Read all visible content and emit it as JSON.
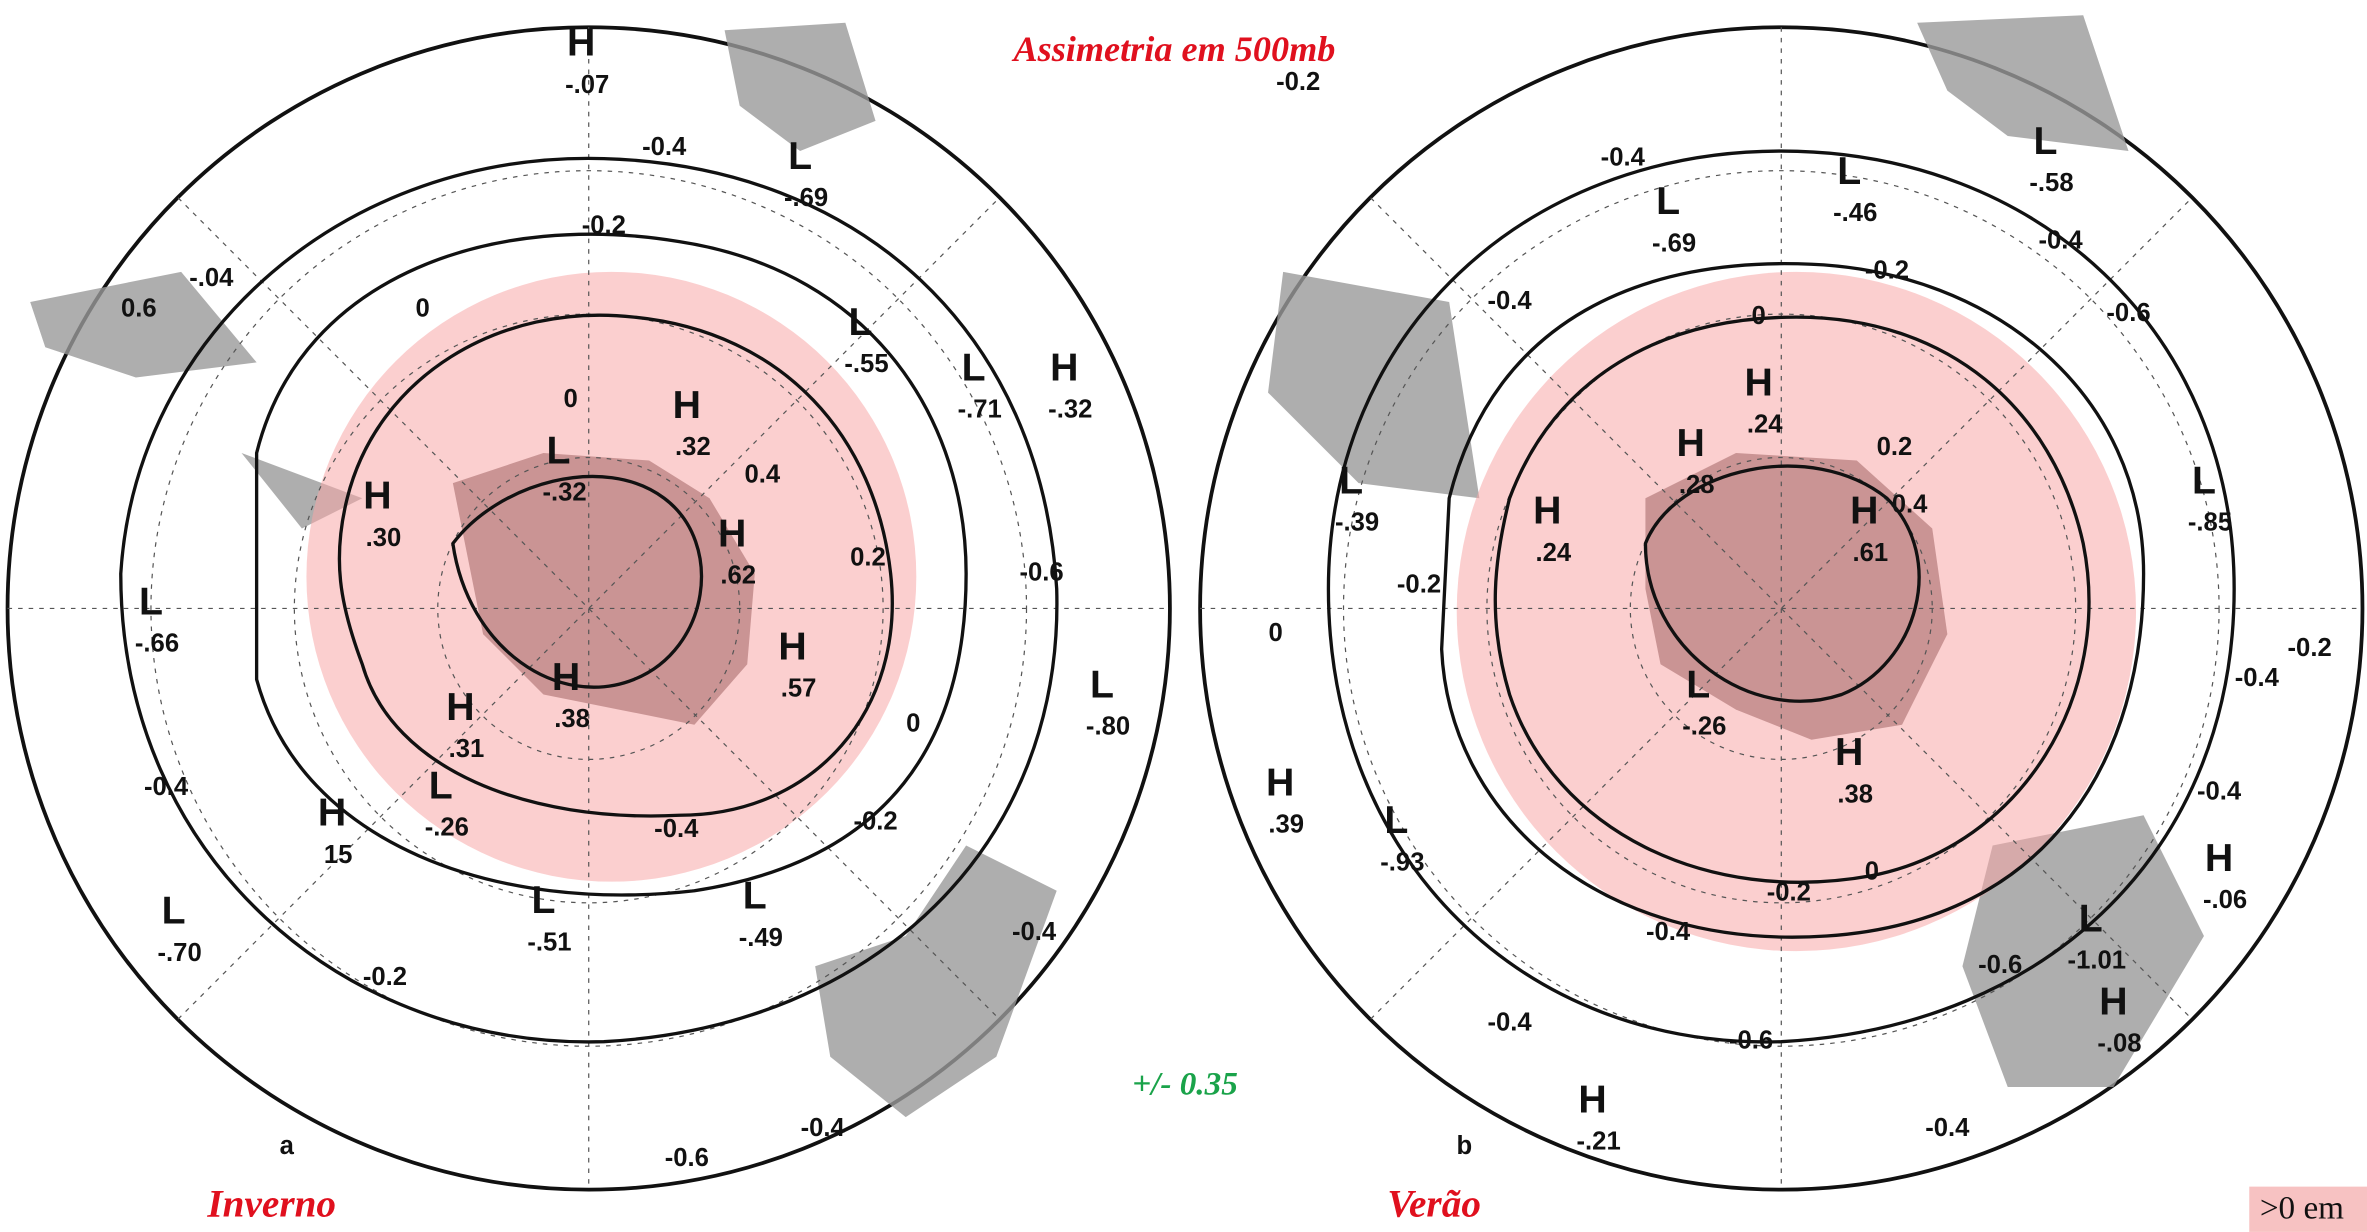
{
  "title": "Assimetria em 500mb",
  "threshold": "+/- 0.35",
  "legend": ">0 em",
  "panels": [
    {
      "letter": "a",
      "season": "Inverno",
      "centers": [
        {
          "type": "H",
          "value": "-.07"
        },
        {
          "type": "L",
          "value": "-.69"
        },
        {
          "type": "L",
          "value": "-.55"
        },
        {
          "type": "L",
          "value": "-.71"
        },
        {
          "type": "H",
          "value": "-.32"
        },
        {
          "type": "H",
          "value": ".32"
        },
        {
          "type": "L",
          "value": "-.32"
        },
        {
          "type": "H",
          "value": ".30"
        },
        {
          "type": "H",
          "value": ".62"
        },
        {
          "type": "L",
          "value": "-.66"
        },
        {
          "type": "H",
          "value": ".38"
        },
        {
          "type": "H",
          "value": ".57"
        },
        {
          "type": "H",
          "value": ".31"
        },
        {
          "type": "L",
          "value": "-.26"
        },
        {
          "type": "L",
          "value": "-.80"
        },
        {
          "type": "H",
          "value": "15"
        },
        {
          "type": "L",
          "value": "-.51"
        },
        {
          "type": "L",
          "value": "-.49"
        },
        {
          "type": "L",
          "value": "-.70"
        }
      ],
      "contours": [
        "-.04",
        "0.6",
        "-0.4",
        "-0.2",
        "0",
        "0",
        "0.4",
        "0.2",
        "-0.6",
        "0",
        "-0.2",
        "-0.4",
        "-0.4",
        "-0.2",
        "-0.4",
        "-0.4",
        "-0.6"
      ]
    },
    {
      "letter": "b",
      "season": "Verão",
      "centers": [
        {
          "type": "L",
          "value": "-.58"
        },
        {
          "type": "L",
          "value": "-.46"
        },
        {
          "type": "L",
          "value": "-.69"
        },
        {
          "type": "H",
          "value": ".24"
        },
        {
          "type": "H",
          "value": ".28"
        },
        {
          "type": "H",
          "value": ".24"
        },
        {
          "type": "H",
          "value": ".61"
        },
        {
          "type": "L",
          "value": "-.39"
        },
        {
          "type": "L",
          "value": "-.85"
        },
        {
          "type": "L",
          "value": "-.26"
        },
        {
          "type": "H",
          "value": ".38"
        },
        {
          "type": "H",
          "value": ".39"
        },
        {
          "type": "L",
          "value": "-.93"
        },
        {
          "type": "H",
          "value": "-.06"
        },
        {
          "type": "L",
          "value": "-1.01"
        },
        {
          "type": "H",
          "value": "-.08"
        },
        {
          "type": "H",
          "value": "-.21"
        }
      ],
      "contours": [
        "-0.2",
        "-0.4",
        "-0.2",
        "-0.4",
        "-0.4",
        "-0.6",
        "0",
        "0.2",
        "0.4",
        "-0.2",
        "0",
        "-0.2",
        "-0.4",
        "-0.4",
        "0",
        "-0.2",
        "-0.4",
        "-0.6",
        "-0.4",
        "-0.6",
        "-0.4"
      ]
    }
  ]
}
